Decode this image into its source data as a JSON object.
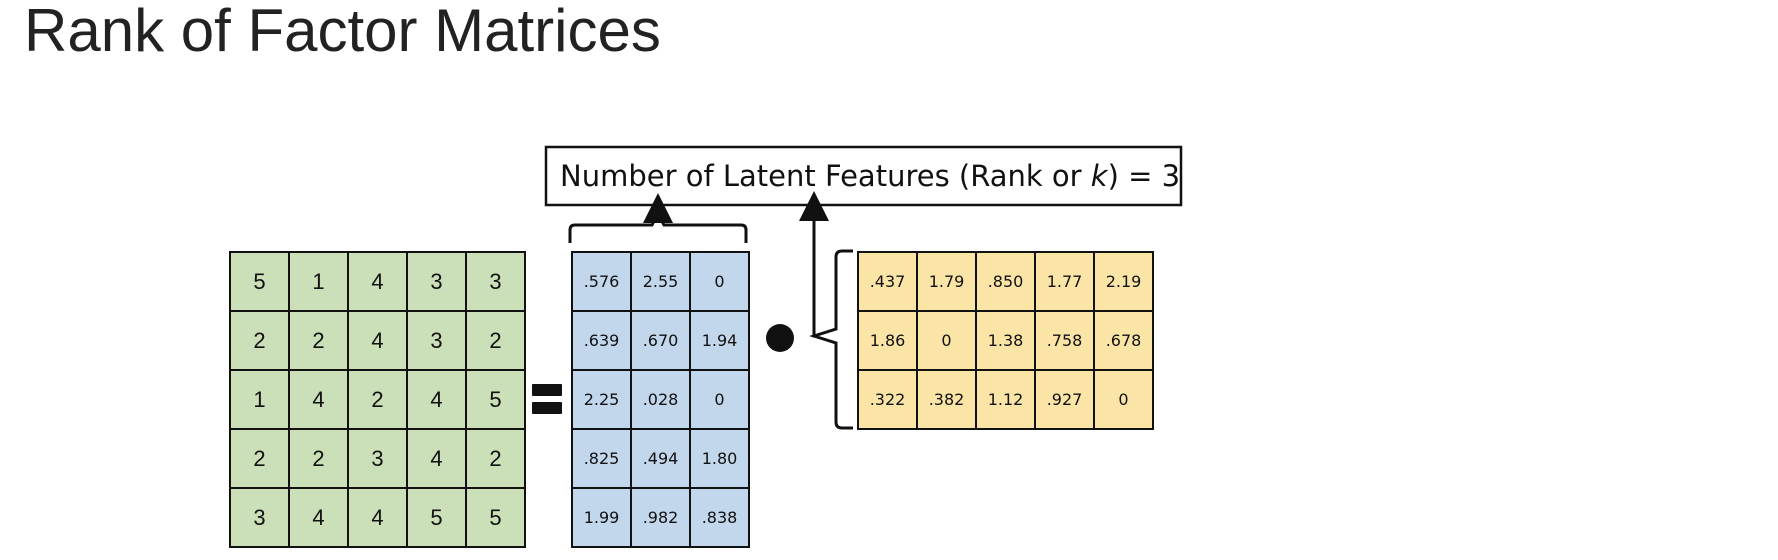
{
  "title": "Rank of Factor Matrices",
  "feature_box": {
    "text_before": "Number of Latent Features (Rank or ",
    "text_italic": "k",
    "text_after": ") = 3"
  },
  "operators": {
    "equals": "equals-sign",
    "dot": "dot-product-symbol"
  },
  "colors": {
    "ratings_fill": "#cbdfb8",
    "user_factor_fill": "#c2d6ec",
    "item_factor_fill": "#fbe5a6",
    "grid_line": "#111111"
  },
  "ratings_matrix": {
    "rows": [
      [
        "5",
        "1",
        "4",
        "3",
        "3"
      ],
      [
        "2",
        "2",
        "4",
        "3",
        "2"
      ],
      [
        "1",
        "4",
        "2",
        "4",
        "5"
      ],
      [
        "2",
        "2",
        "3",
        "4",
        "2"
      ],
      [
        "3",
        "4",
        "4",
        "5",
        "5"
      ]
    ]
  },
  "user_factor_matrix": {
    "rows": [
      [
        ".576",
        "2.55",
        "0"
      ],
      [
        ".639",
        ".670",
        "1.94"
      ],
      [
        "2.25",
        ".028",
        "0"
      ],
      [
        ".825",
        ".494",
        "1.80"
      ],
      [
        "1.99",
        ".982",
        ".838"
      ]
    ]
  },
  "item_factor_matrix": {
    "rows": [
      [
        ".437",
        "1.79",
        ".850",
        "1.77",
        "2.19"
      ],
      [
        "1.86",
        "0",
        "1.38",
        ".758",
        ".678"
      ],
      [
        ".322",
        ".382",
        "1.12",
        ".927",
        "0"
      ]
    ]
  }
}
